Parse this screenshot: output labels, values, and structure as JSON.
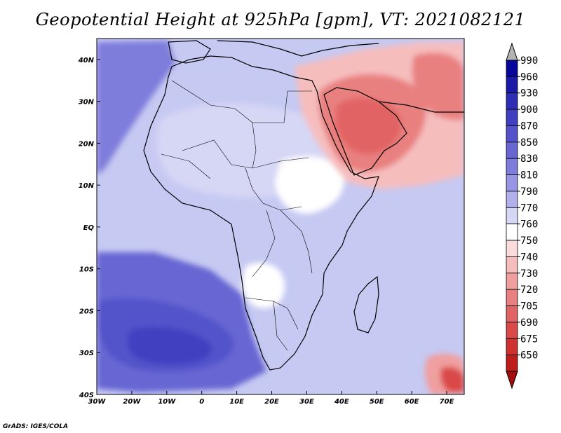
{
  "title": "Geopotential Height at 925hPa [gpm], VT: 2021082121",
  "credit": "GrADS: IGES/COLA",
  "map": {
    "projection": "lat-lon",
    "lon_range": [
      -30,
      75
    ],
    "lat_range": [
      -40,
      45
    ],
    "lon_ticks": [
      {
        "value": -30,
        "label": "30W"
      },
      {
        "value": -20,
        "label": "20W"
      },
      {
        "value": -10,
        "label": "10W"
      },
      {
        "value": 0,
        "label": "0"
      },
      {
        "value": 10,
        "label": "10E"
      },
      {
        "value": 20,
        "label": "20E"
      },
      {
        "value": 30,
        "label": "30E"
      },
      {
        "value": 40,
        "label": "40E"
      },
      {
        "value": 50,
        "label": "50E"
      },
      {
        "value": 60,
        "label": "60E"
      },
      {
        "value": 70,
        "label": "70E"
      }
    ],
    "lat_ticks": [
      {
        "value": 40,
        "label": "40N"
      },
      {
        "value": 30,
        "label": "30N"
      },
      {
        "value": 20,
        "label": "20N"
      },
      {
        "value": 10,
        "label": "10N"
      },
      {
        "value": 0,
        "label": "EQ"
      },
      {
        "value": -10,
        "label": "10S"
      },
      {
        "value": -20,
        "label": "20S"
      },
      {
        "value": -30,
        "label": "30S"
      },
      {
        "value": -40,
        "label": "40S"
      }
    ],
    "background_color": "#c6c9f2"
  },
  "colorbar": {
    "levels": [
      {
        "label": "990",
        "color": "#07069a"
      },
      {
        "label": "960",
        "color": "#1b1aa8"
      },
      {
        "label": "930",
        "color": "#2e2db6"
      },
      {
        "label": "900",
        "color": "#403fc1"
      },
      {
        "label": "870",
        "color": "#5352ca"
      },
      {
        "label": "850",
        "color": "#6866d3"
      },
      {
        "label": "830",
        "color": "#7f7ddc"
      },
      {
        "label": "810",
        "color": "#9896e4"
      },
      {
        "label": "790",
        "color": "#b3b1ec"
      },
      {
        "label": "770",
        "color": "#d6d6f5"
      },
      {
        "label": "760",
        "color": "#ffffff"
      },
      {
        "label": "750",
        "color": "#fbdcdc"
      },
      {
        "label": "740",
        "color": "#f6bdbd"
      },
      {
        "label": "730",
        "color": "#f09f9f"
      },
      {
        "label": "720",
        "color": "#e98080"
      },
      {
        "label": "705",
        "color": "#e26363"
      },
      {
        "label": "690",
        "color": "#da4848"
      },
      {
        "label": "675",
        "color": "#cf3131"
      },
      {
        "label": "650",
        "color": "#bf1c1c"
      }
    ],
    "over_color": "#b3b3b3",
    "under_color": "#a30f0f"
  },
  "field_regions": [
    {
      "name": "atlantic-south-high-core",
      "color": "#403fc1"
    },
    {
      "name": "atlantic-south-high-ring",
      "color": "#5352ca"
    },
    {
      "name": "atlantic-south-high-outer",
      "color": "#6866d3"
    },
    {
      "name": "north-atlantic-high",
      "color": "#7f7ddc"
    },
    {
      "name": "sahara-low",
      "color": "#d6d6f5"
    },
    {
      "name": "east-africa-low",
      "color": "#ffffff"
    },
    {
      "name": "kalahari-low",
      "color": "#ffffff"
    },
    {
      "name": "arabian-low-outer",
      "color": "#f6bdbd"
    },
    {
      "name": "arabian-low-mid",
      "color": "#e98080"
    },
    {
      "name": "arabian-low-core",
      "color": "#e26363"
    },
    {
      "name": "iran-low",
      "color": "#e98080"
    },
    {
      "name": "southern-indian-ocean-low",
      "color": "#f09f9f"
    },
    {
      "name": "southern-indian-ocean-low-core",
      "color": "#da4848"
    }
  ]
}
